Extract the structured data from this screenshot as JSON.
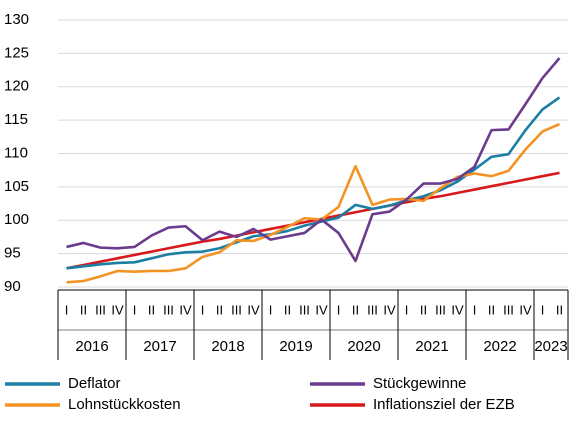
{
  "chart_data": {
    "type": "line",
    "categories": [
      "I",
      "II",
      "III",
      "IV",
      "I",
      "II",
      "III",
      "IV",
      "I",
      "II",
      "III",
      "IV",
      "I",
      "II",
      "III",
      "IV",
      "I",
      "II",
      "III",
      "IV",
      "I",
      "II",
      "III",
      "IV",
      "I",
      "II",
      "III",
      "IV",
      "I",
      "II"
    ],
    "years": [
      "2016",
      "2017",
      "2018",
      "2019",
      "2020",
      "2021",
      "2022",
      "2023"
    ],
    "series": [
      {
        "name": "Deflator",
        "color": "#1b7fa3",
        "values": [
          92.8,
          93.1,
          93.4,
          93.6,
          93.7,
          94.3,
          94.9,
          95.2,
          95.3,
          95.8,
          96.7,
          97.6,
          97.9,
          98.4,
          99.2,
          99.8,
          100.4,
          102.3,
          101.7,
          102.2,
          103.0,
          103.6,
          104.5,
          105.8,
          107.6,
          109.5,
          109.9,
          113.5,
          116.6,
          118.4
        ]
      },
      {
        "name": "Stückgewinne",
        "color": "#6b3b8e",
        "values": [
          96.0,
          96.6,
          95.9,
          95.8,
          96.0,
          97.7,
          98.9,
          99.1,
          97.0,
          98.3,
          97.5,
          98.7,
          97.1,
          97.6,
          98.1,
          100.1,
          98.1,
          93.9,
          100.9,
          101.3,
          103.1,
          105.5,
          105.5,
          106.2,
          108.0,
          113.5,
          113.6,
          117.4,
          121.3,
          124.3
        ]
      },
      {
        "name": "Lohnstückkosten",
        "color": "#f39323",
        "values": [
          90.7,
          90.9,
          91.6,
          92.4,
          92.3,
          92.4,
          92.4,
          92.8,
          94.5,
          95.2,
          97.0,
          96.9,
          97.8,
          99.0,
          100.3,
          100.1,
          102.0,
          108.1,
          102.3,
          103.1,
          103.2,
          102.9,
          104.8,
          106.5,
          107.0,
          106.6,
          107.4,
          110.6,
          113.3,
          114.4
        ]
      },
      {
        "name": "Inflationsziel der EZB",
        "color": "#d7191c",
        "values": [
          92.8,
          93.3,
          93.8,
          94.3,
          94.8,
          95.3,
          95.8,
          96.3,
          96.8,
          97.2,
          97.7,
          98.2,
          98.7,
          99.2,
          99.7,
          100.2,
          100.7,
          101.2,
          101.7,
          102.2,
          102.7,
          103.2,
          103.6,
          104.1,
          104.6,
          105.1,
          105.6,
          106.1,
          106.6,
          107.1
        ]
      }
    ],
    "ylim": [
      90,
      130
    ],
    "yticks": [
      90,
      95,
      100,
      105,
      110,
      115,
      120,
      125,
      130
    ],
    "grid": true
  }
}
